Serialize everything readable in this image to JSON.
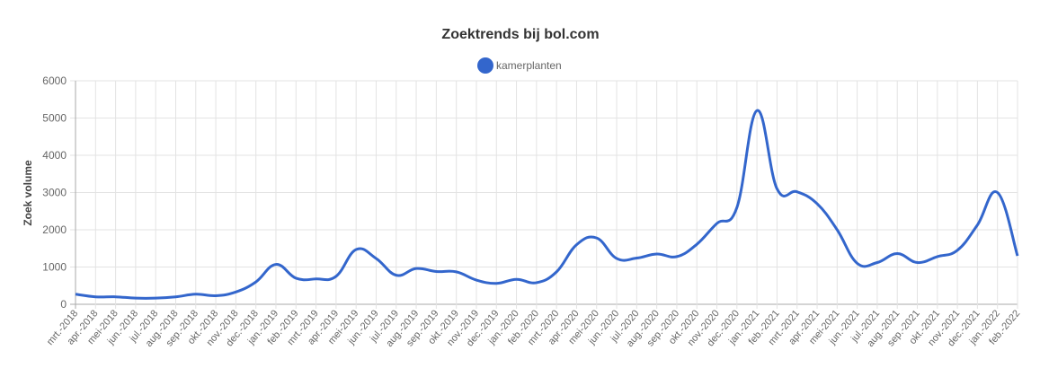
{
  "chart_data": {
    "type": "line",
    "title": "Zoektrends bij bol.com",
    "xlabel": "",
    "ylabel": "Zoek volume",
    "ylim": [
      0,
      6000
    ],
    "yticks": [
      0,
      1000,
      2000,
      3000,
      4000,
      5000,
      6000
    ],
    "grid": true,
    "legend_position": "top",
    "categories": [
      "mrt.-2018",
      "apr.-2018",
      "mei-2018",
      "jun.-2018",
      "jul.-2018",
      "aug.-2018",
      "sep.-2018",
      "okt.-2018",
      "nov.-2018",
      "dec.-2018",
      "jan.-2019",
      "feb.-2019",
      "mrt.-2019",
      "apr.-2019",
      "mei-2019",
      "jun.-2019",
      "jul.-2019",
      "aug.-2019",
      "sep.-2019",
      "okt.-2019",
      "nov.-2019",
      "dec.-2019",
      "jan.-2020",
      "feb.-2020",
      "mrt.-2020",
      "apr.-2020",
      "mei-2020",
      "jun.-2020",
      "jul.-2020",
      "aug.-2020",
      "sep.-2020",
      "okt.-2020",
      "nov.-2020",
      "dec.-2020",
      "jan.-2021",
      "feb.-2021",
      "mrt.-2021",
      "apr.-2021",
      "mei-2021",
      "jun.-2021",
      "jul.-2021",
      "aug.-2021",
      "sep.-2021",
      "okt.-2021",
      "nov.-2021",
      "dec.-2021",
      "jan.-2022",
      "feb.-2022"
    ],
    "series": [
      {
        "name": "kamerplanten",
        "color": "#3366cc",
        "values": [
          270,
          200,
          200,
          165,
          165,
          200,
          270,
          230,
          330,
          600,
          1070,
          700,
          680,
          750,
          1470,
          1230,
          780,
          960,
          880,
          870,
          650,
          560,
          670,
          580,
          870,
          1600,
          1780,
          1230,
          1240,
          1350,
          1280,
          1610,
          2170,
          2600,
          5200,
          3100,
          3020,
          2700,
          2000,
          1100,
          1120,
          1360,
          1120,
          1280,
          1450,
          2130,
          3000,
          1300
        ]
      }
    ]
  }
}
